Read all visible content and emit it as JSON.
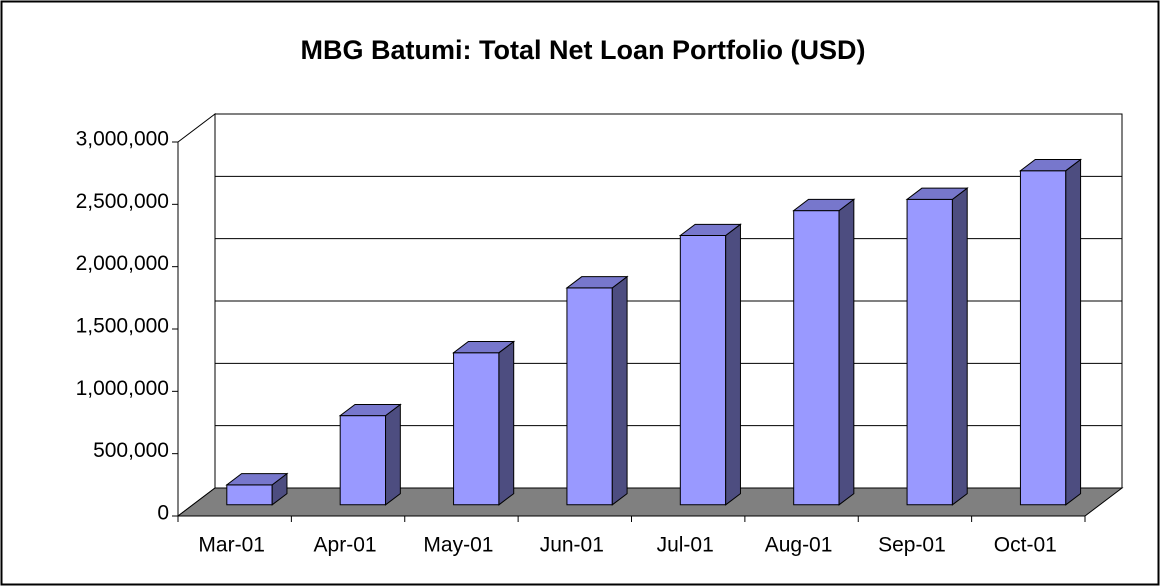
{
  "chart_data": {
    "type": "bar3d",
    "title": "MBG Batumi: Total Net Loan Portfolio (USD)",
    "categories": [
      "Mar-01",
      "Apr-01",
      "May-01",
      "Jun-01",
      "Jul-01",
      "Aug-01",
      "Sep-01",
      "Oct-01"
    ],
    "values": [
      160000,
      715000,
      1220000,
      1740000,
      2160000,
      2360000,
      2450000,
      2680000
    ],
    "color": "#9999ff",
    "ylim": [
      0,
      3000000
    ],
    "yticks": [
      0,
      {
        "value": 500000,
        "label": "500,000"
      },
      {
        "value": 1000000,
        "label": "1,000,000"
      },
      {
        "value": 1500000,
        "label": "1,500,000"
      },
      {
        "value": 2000000,
        "label": "2,000,000"
      },
      {
        "value": 2500000,
        "label": "2,500,000"
      },
      {
        "value": 3000000,
        "label": "3,000,000"
      }
    ],
    "grid": true
  }
}
